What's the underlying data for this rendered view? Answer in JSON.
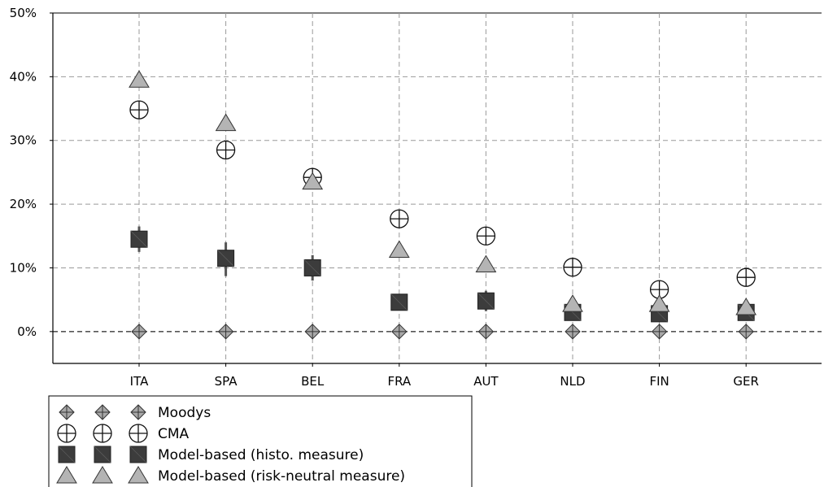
{
  "chart_data": {
    "type": "scatter",
    "title": "",
    "xlabel": "",
    "ylabel": "",
    "categories": [
      "ITA",
      "SPA",
      "BEL",
      "FRA",
      "AUT",
      "NLD",
      "FIN",
      "GER"
    ],
    "ylim": [
      -5,
      50
    ],
    "yticks": [
      0,
      10,
      20,
      30,
      40,
      50
    ],
    "ytick_labels": [
      "0%",
      "10%",
      "20%",
      "30%",
      "40%",
      "50%"
    ],
    "grid": true,
    "legend_position": "bottom-left",
    "series": [
      {
        "name": "Moodys",
        "marker": "diamond-cross",
        "color": "#a8a8a8",
        "values": [
          0,
          0,
          0,
          0,
          0,
          0,
          0,
          0
        ]
      },
      {
        "name": "CMA",
        "marker": "circle-cross",
        "color": "#ffffff",
        "values": [
          34.8,
          28.5,
          24.2,
          17.7,
          15.0,
          10.1,
          6.6,
          8.5
        ]
      },
      {
        "name": "Model-based (histo. measure)",
        "marker": "square",
        "color": "#3c3c3c",
        "values": [
          14.5,
          11.5,
          10.0,
          4.6,
          4.8,
          3.0,
          2.8,
          3.0
        ],
        "error_low": [
          12.5,
          8.7,
          8.0,
          3.3,
          3.2,
          2.0,
          1.8,
          2.0
        ],
        "error_high": [
          16.5,
          14.0,
          12.0,
          5.7,
          6.4,
          4.0,
          3.8,
          4.0
        ]
      },
      {
        "name": "Model-based (risk-neutral measure)",
        "marker": "triangle",
        "color": "#b4b4b4",
        "values": [
          39.5,
          32.7,
          23.5,
          12.8,
          10.5,
          4.3,
          4.3,
          3.8
        ]
      }
    ]
  }
}
